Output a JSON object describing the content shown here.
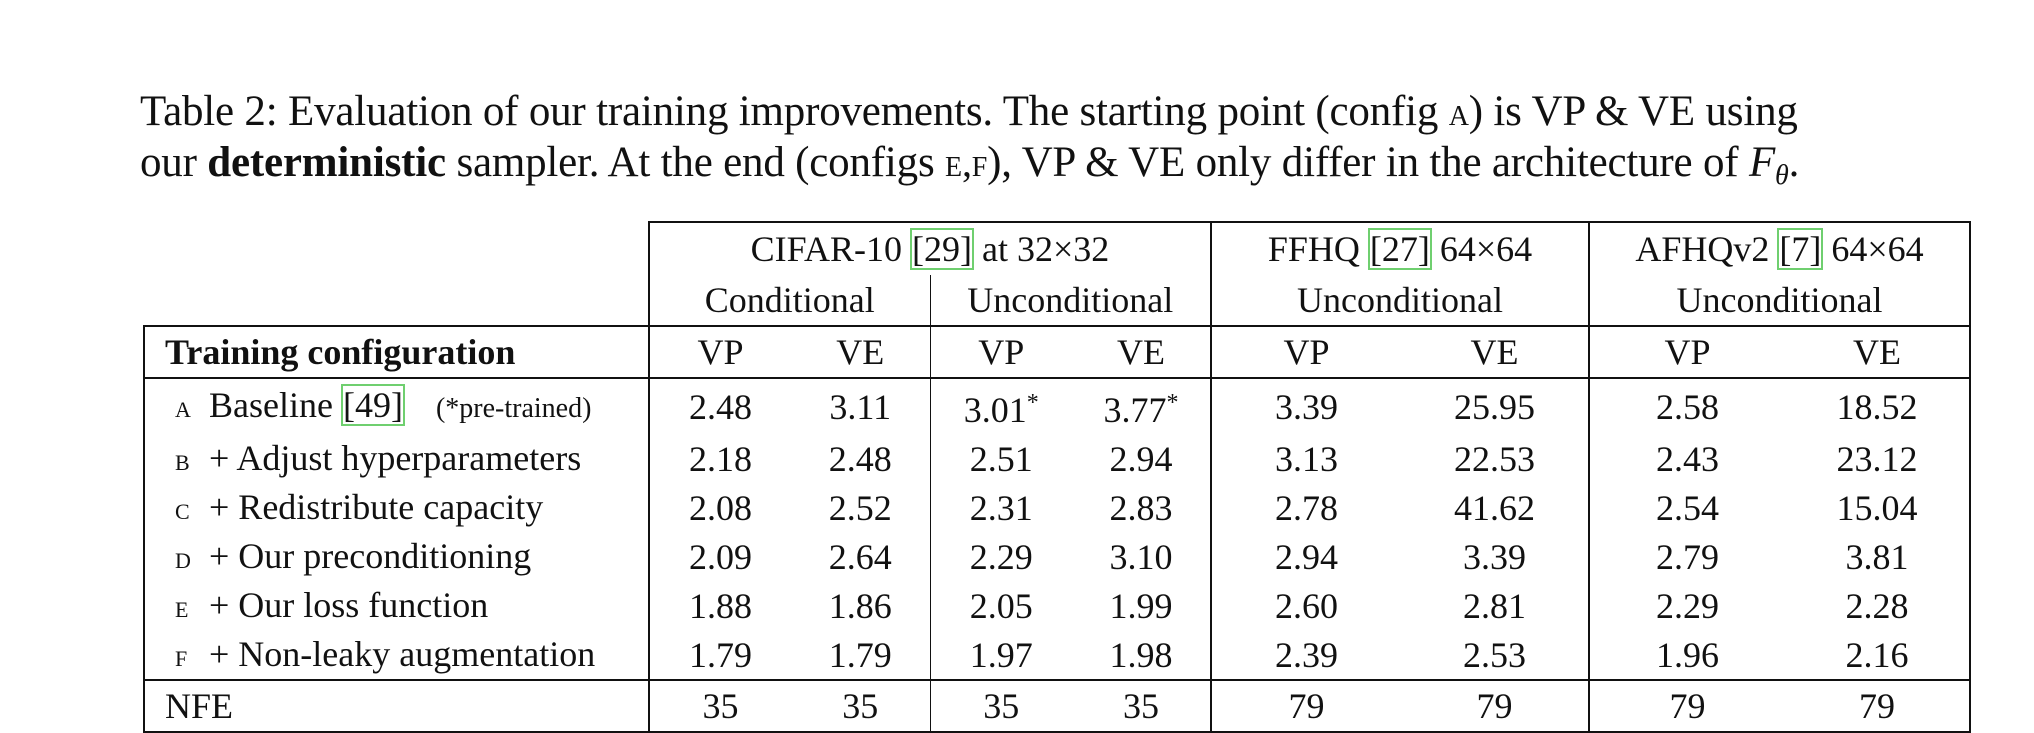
{
  "caption": {
    "line1_prefix": "Table 2: Evaluation of our training improvements. The starting point (config ",
    "line1_config": "A",
    "line1_suffix": ") is VP & VE using",
    "line2_prefix": "our ",
    "line2_bold": "deterministic",
    "line2_mid": " sampler. At the end (configs ",
    "line2_configs": "E,F",
    "line2_suffix": "), VP & VE only differ in the architecture of ",
    "line2_symbol": "F",
    "line2_subscript": "θ",
    "line2_end": "."
  },
  "table": {
    "groups": {
      "cifar": {
        "name": "CIFAR-10 ",
        "cite": "[29]",
        "res": " at 32×32",
        "conditional": "Conditional",
        "unconditional": "Unconditional"
      },
      "ffhq": {
        "name": "FFHQ ",
        "cite": "[27]",
        "res": " 64×64",
        "unconditional": "Unconditional"
      },
      "afhq": {
        "name": "AFHQv2 ",
        "cite": "[7]",
        "res": " 64×64",
        "unconditional": "Unconditional"
      }
    },
    "config_header": "Training configuration",
    "vp": "VP",
    "ve": "VE",
    "rows": [
      {
        "letter": "A",
        "label": "Baseline ",
        "cite": "[49]",
        "note": "(*pre-trained)",
        "v": [
          "2.48",
          "3.11",
          "3.01",
          "3.77",
          "3.39",
          "25.95",
          "2.58",
          "18.52"
        ],
        "star": "*"
      },
      {
        "letter": "B",
        "label": "+ Adjust hyperparameters",
        "v": [
          "2.18",
          "2.48",
          "2.51",
          "2.94",
          "3.13",
          "22.53",
          "2.43",
          "23.12"
        ]
      },
      {
        "letter": "C",
        "label": "+ Redistribute capacity",
        "v": [
          "2.08",
          "2.52",
          "2.31",
          "2.83",
          "2.78",
          "41.62",
          "2.54",
          "15.04"
        ]
      },
      {
        "letter": "D",
        "label": "+ Our preconditioning",
        "v": [
          "2.09",
          "2.64",
          "2.29",
          "3.10",
          "2.94",
          "3.39",
          "2.79",
          "3.81"
        ]
      },
      {
        "letter": "E",
        "label": "+ Our loss function",
        "v": [
          "1.88",
          "1.86",
          "2.05",
          "1.99",
          "2.60",
          "2.81",
          "2.29",
          "2.28"
        ]
      },
      {
        "letter": "F",
        "label": "+ Non-leaky augmentation",
        "v": [
          "1.79",
          "1.79",
          "1.97",
          "1.98",
          "2.39",
          "2.53",
          "1.96",
          "2.16"
        ]
      }
    ],
    "nfe": {
      "label": "NFE",
      "v": [
        "35",
        "35",
        "35",
        "35",
        "79",
        "79",
        "79",
        "79"
      ]
    }
  }
}
